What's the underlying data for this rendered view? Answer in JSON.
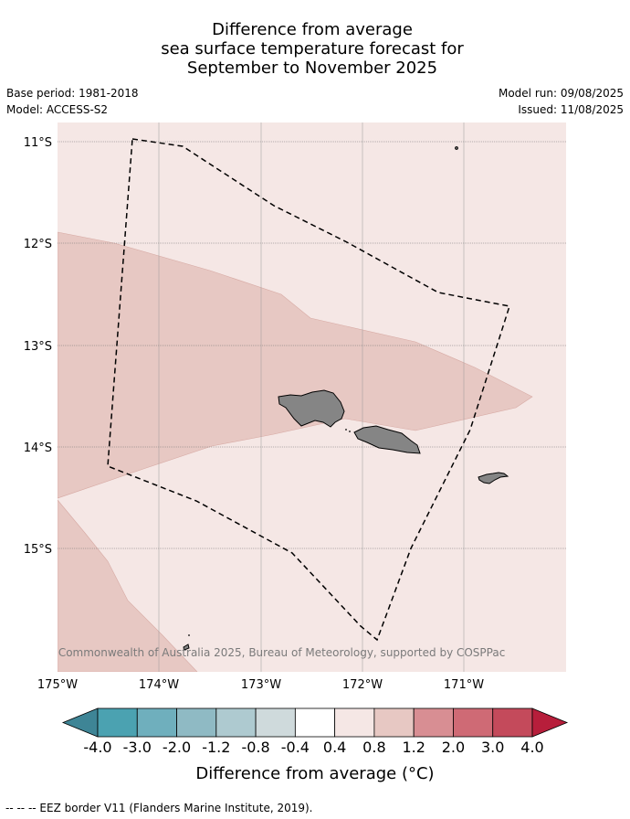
{
  "title": {
    "line1": "Difference from average",
    "line2": "sea surface temperature forecast for",
    "line3": "September to November 2025"
  },
  "meta": {
    "base_period": "Base period: 1981-2018",
    "model": "Model: ACCESS-S2",
    "model_run": "Model run: 09/08/2025",
    "issued": "Issued: 11/08/2025"
  },
  "map": {
    "lat_labels": [
      "11°S",
      "12°S",
      "13°S",
      "14°S",
      "15°S"
    ],
    "lon_labels": [
      "175°W",
      "174°W",
      "173°W",
      "172°W",
      "171°W"
    ],
    "copyright": "© Commonwealth of Australia 2025, Bureau of Meteorology, supported by COSPPac",
    "land_color": "#858585",
    "categories": {
      "0.4-0.8": "#f5e7e5",
      "0.8-1.2": "#e7c8c3"
    }
  },
  "colorbar": {
    "title": "Difference from average (°C)",
    "ticks": [
      "-4.0",
      "-3.0",
      "-2.0",
      "-1.2",
      "-0.8",
      "-0.4",
      "0.4",
      "0.8",
      "1.2",
      "2.0",
      "3.0",
      "4.0"
    ],
    "colors": [
      "#3e8596",
      "#4ba2b1",
      "#6fafbd",
      "#8fbac4",
      "#aecad0",
      "#cfdadc",
      "#ffffff",
      "#f5e7e5",
      "#e7c8c3",
      "#d88e93",
      "#cf6a75",
      "#c44a5b",
      "#b71e3b"
    ]
  },
  "footer": {
    "eez_legend": "--  --  -- EEZ border V11 (Flanders Marine Institute, 2019)."
  }
}
